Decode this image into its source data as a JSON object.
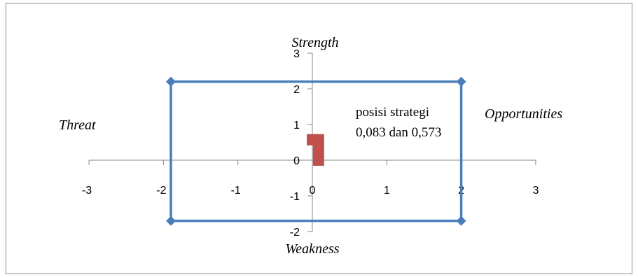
{
  "chart_data": {
    "type": "scatter",
    "xlim": [
      -3,
      3
    ],
    "ylim": [
      -2,
      3
    ],
    "x_ticks": [
      "-3",
      "-2",
      "-1",
      "0",
      "1",
      "2",
      "3"
    ],
    "y_ticks": [
      "-2",
      "-1",
      "0",
      "1",
      "2",
      "3"
    ],
    "grid": false,
    "quadrant_labels": {
      "top": "Strength",
      "bottom": "Weakness",
      "left": "Threat",
      "right": "Opportunities"
    },
    "series": [
      {
        "color": "#4a7ebb",
        "marker": "diamond",
        "points": [
          {
            "x": -1.9,
            "y": 2.2
          },
          {
            "x": 2.0,
            "y": 2.2
          },
          {
            "x": 2.0,
            "y": -1.7
          },
          {
            "x": -1.9,
            "y": -1.7
          },
          {
            "x": -1.9,
            "y": 2.2
          }
        ]
      },
      {
        "color": "#c0504d",
        "marker": "square",
        "points": [
          {
            "x": 0.0,
            "y": 0.573
          },
          {
            "x": 0.083,
            "y": 0.573
          },
          {
            "x": 0.083,
            "y": 0.3
          },
          {
            "x": 0.083,
            "y": 0.0
          }
        ]
      }
    ],
    "annotation": [
      "posisi strategi",
      "0,083 dan 0,573"
    ]
  }
}
